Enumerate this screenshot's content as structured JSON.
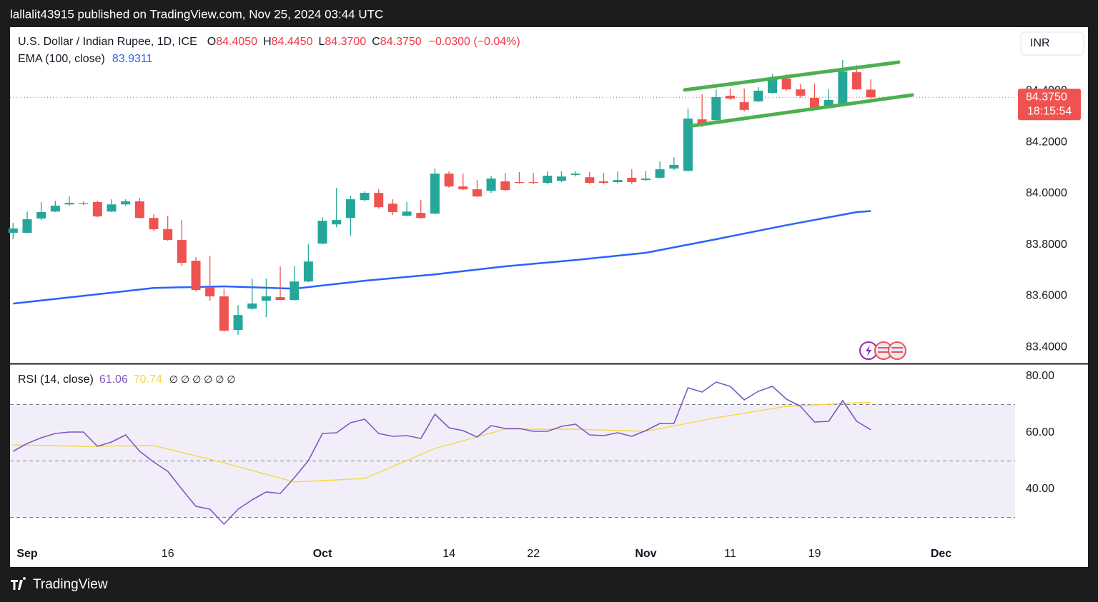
{
  "header": {
    "text": "lallalit43915 published on TradingView.com, Nov 25, 2024 03:44 UTC"
  },
  "footer": {
    "logo_text": "TradingView"
  },
  "chart_data": [
    {
      "type": "candlestick",
      "title": "U.S. Dollar / Indian Rupee, 1D, ICE",
      "ohlc_legend": {
        "open_label": "O",
        "open": "84.4050",
        "high_label": "H",
        "high": "84.4450",
        "low_label": "L",
        "low": "84.3700",
        "close_label": "C",
        "close": "84.3750",
        "change": "−0.0300 (−0.04%)",
        "color": "#f23645"
      },
      "currency_button": "INR",
      "last_price_label": "84.3750",
      "countdown": "18:15:54",
      "up_color": "#26a69a",
      "down_color": "#ef5350",
      "x": [
        0,
        1,
        2,
        3,
        4,
        5,
        6,
        7,
        8,
        9,
        10,
        11,
        12,
        13,
        14,
        15,
        16,
        17,
        18,
        19,
        20,
        21,
        22,
        23,
        24,
        25,
        26,
        27,
        28,
        29,
        30,
        31,
        32,
        33,
        34,
        35,
        36,
        37,
        38,
        39,
        40,
        41,
        42,
        43,
        44,
        45,
        46,
        47,
        48,
        49,
        50,
        51,
        52,
        53,
        54,
        55,
        56,
        57,
        58,
        59,
        60,
        61
      ],
      "open": [
        83.846,
        83.846,
        83.902,
        83.929,
        83.957,
        83.96,
        83.966,
        83.929,
        83.957,
        83.969,
        83.904,
        83.86,
        83.818,
        83.737,
        83.634,
        83.598,
        83.467,
        83.55,
        83.581,
        83.595,
        83.584,
        83.656,
        83.804,
        83.879,
        83.904,
        83.974,
        84.002,
        83.96,
        83.913,
        83.924,
        83.921,
        84.077,
        84.027,
        84.016,
        84.01,
        84.047,
        84.044,
        84.044,
        84.041,
        84.049,
        84.072,
        84.063,
        84.047,
        84.044,
        84.061,
        84.052,
        84.061,
        84.097,
        84.088,
        84.289,
        84.286,
        84.381,
        84.356,
        84.359,
        84.392,
        84.448,
        84.406,
        84.373,
        84.342,
        84.348,
        84.473,
        84.405
      ],
      "high": [
        83.885,
        83.929,
        83.966,
        83.971,
        83.988,
        83.969,
        83.971,
        83.977,
        83.977,
        83.982,
        83.918,
        83.913,
        83.896,
        83.751,
        83.757,
        83.628,
        83.564,
        83.667,
        83.667,
        83.715,
        83.717,
        83.801,
        83.907,
        84.022,
        83.991,
        84.008,
        84.016,
        83.977,
        83.966,
        83.974,
        84.097,
        84.086,
        84.077,
        84.052,
        84.069,
        84.08,
        84.083,
        84.08,
        84.086,
        84.086,
        84.086,
        84.083,
        84.08,
        84.086,
        84.094,
        84.088,
        84.125,
        84.141,
        84.331,
        84.387,
        84.406,
        84.409,
        84.409,
        84.415,
        84.465,
        84.465,
        84.426,
        84.429,
        84.406,
        84.521,
        84.501,
        84.445
      ],
      "low": [
        83.821,
        83.846,
        83.896,
        83.927,
        83.952,
        83.955,
        83.907,
        83.927,
        83.952,
        83.902,
        83.854,
        83.815,
        83.717,
        83.617,
        83.581,
        83.461,
        83.447,
        83.545,
        83.517,
        83.584,
        83.581,
        83.653,
        83.801,
        83.868,
        83.835,
        83.969,
        83.941,
        83.916,
        83.91,
        83.902,
        83.918,
        84.022,
        84.013,
        83.985,
        84.002,
        84.01,
        84.038,
        84.035,
        84.035,
        84.044,
        84.066,
        84.038,
        84.035,
        84.038,
        84.038,
        84.049,
        84.058,
        84.091,
        84.086,
        84.259,
        84.284,
        84.365,
        84.32,
        84.356,
        84.39,
        84.401,
        84.373,
        84.331,
        84.339,
        84.345,
        84.404,
        84.37
      ],
      "close": [
        83.863,
        83.899,
        83.927,
        83.952,
        83.963,
        83.963,
        83.91,
        83.957,
        83.969,
        83.904,
        83.86,
        83.818,
        83.729,
        83.623,
        83.598,
        83.464,
        83.525,
        83.57,
        83.598,
        83.584,
        83.656,
        83.734,
        83.893,
        83.896,
        83.977,
        84.002,
        83.946,
        83.927,
        83.929,
        83.904,
        84.077,
        84.027,
        84.016,
        83.988,
        84.058,
        84.013,
        84.041,
        84.041,
        84.069,
        84.066,
        84.077,
        84.041,
        84.041,
        84.052,
        84.044,
        84.058,
        84.094,
        84.111,
        84.292,
        84.273,
        84.376,
        84.37,
        84.326,
        84.401,
        84.448,
        84.406,
        84.381,
        84.334,
        84.365,
        84.476,
        84.406,
        84.375
      ],
      "overlays": [
        {
          "name": "EMA (100, close)",
          "last_value_label": "83.9311",
          "color": "#2962ff",
          "x": [
            0,
            5,
            10,
            15,
            20,
            25,
            30,
            35,
            40,
            45,
            50,
            55,
            60,
            61
          ],
          "values": [
            83.57,
            83.6,
            83.631,
            83.637,
            83.628,
            83.659,
            83.684,
            83.715,
            83.74,
            83.768,
            83.821,
            83.876,
            83.927,
            83.9311
          ]
        }
      ],
      "trend_lines": [
        {
          "x": [
            47.77,
            62.97
          ],
          "y": [
            84.404,
            84.512
          ],
          "color": "#4caf50"
        },
        {
          "x": [
            48.28,
            63.94
          ],
          "y": [
            84.264,
            84.384
          ],
          "color": "#4caf50"
        }
      ],
      "xlim": [
        -0.22,
        71.26
      ],
      "ylim": [
        83.336,
        84.649
      ],
      "yticks": [
        {
          "value": 83.4,
          "label": "83.4000"
        },
        {
          "value": 83.6,
          "label": "83.6000"
        },
        {
          "value": 83.8,
          "label": "83.8000"
        },
        {
          "value": 84.0,
          "label": "84.0000"
        },
        {
          "value": 84.2,
          "label": "84.2000"
        },
        {
          "value": 84.4,
          "label": "84.4000"
        }
      ]
    },
    {
      "type": "line",
      "title": "RSI (14, close)",
      "placeholders": "∅ ∅ ∅ ∅ ∅ ∅",
      "x": [
        0,
        1,
        2,
        3,
        4,
        5,
        6,
        7,
        8,
        9,
        10,
        11,
        12,
        13,
        14,
        15,
        16,
        17,
        18,
        19,
        20,
        21,
        22,
        23,
        24,
        25,
        26,
        27,
        28,
        29,
        30,
        31,
        32,
        33,
        34,
        35,
        36,
        37,
        38,
        39,
        40,
        41,
        42,
        43,
        44,
        45,
        46,
        47,
        48,
        49,
        50,
        51,
        52,
        53,
        54,
        55,
        56,
        57,
        58,
        59,
        60,
        61
      ],
      "series": [
        {
          "color": "#7e57c2",
          "last_value_label": "61.06",
          "values": [
            53.42,
            56.2,
            58.23,
            59.75,
            60.25,
            60.25,
            55.19,
            56.71,
            59.24,
            53.42,
            49.62,
            46.33,
            40.0,
            33.92,
            32.91,
            27.59,
            32.91,
            36.2,
            38.99,
            38.48,
            44.05,
            50.13,
            59.75,
            60.0,
            63.54,
            64.81,
            59.75,
            58.73,
            58.99,
            57.97,
            66.58,
            61.77,
            60.76,
            58.48,
            62.53,
            61.52,
            61.52,
            60.51,
            60.51,
            62.28,
            63.04,
            59.24,
            58.99,
            60.0,
            58.73,
            60.76,
            63.29,
            63.29,
            75.95,
            74.43,
            77.97,
            76.46,
            71.65,
            74.68,
            76.46,
            71.9,
            69.37,
            63.8,
            64.05,
            71.39,
            64.05,
            61.06
          ]
        },
        {
          "color": "#f5d742",
          "last_value_label": "70.74",
          "x": [
            0,
            5,
            10,
            15,
            20,
            25,
            30,
            35,
            40,
            45,
            50,
            55,
            60,
            61
          ],
          "values": [
            55.7,
            55.19,
            55.44,
            49.37,
            42.53,
            43.8,
            54.43,
            61.27,
            61.27,
            60.51,
            65.32,
            69.37,
            70.63,
            70.74
          ]
        }
      ],
      "levels": [
        30,
        50,
        70
      ],
      "band_color": "#7e57c2",
      "xlim": [
        -0.22,
        71.26
      ],
      "ylim": [
        21.0,
        84.3
      ],
      "yticks": [
        {
          "value": 40,
          "label": "40.00"
        },
        {
          "value": 60,
          "label": "60.00"
        },
        {
          "value": 80,
          "label": "80.00"
        }
      ],
      "xticks": [
        {
          "value": 1,
          "label": "Sep"
        },
        {
          "value": 11,
          "label": "16"
        },
        {
          "value": 22,
          "label": "Oct"
        },
        {
          "value": 31,
          "label": "14"
        },
        {
          "value": 37,
          "label": "22"
        },
        {
          "value": 45,
          "label": "Nov"
        },
        {
          "value": 51,
          "label": "11"
        },
        {
          "value": 57,
          "label": "19"
        },
        {
          "value": 66,
          "label": "Dec"
        }
      ]
    }
  ]
}
